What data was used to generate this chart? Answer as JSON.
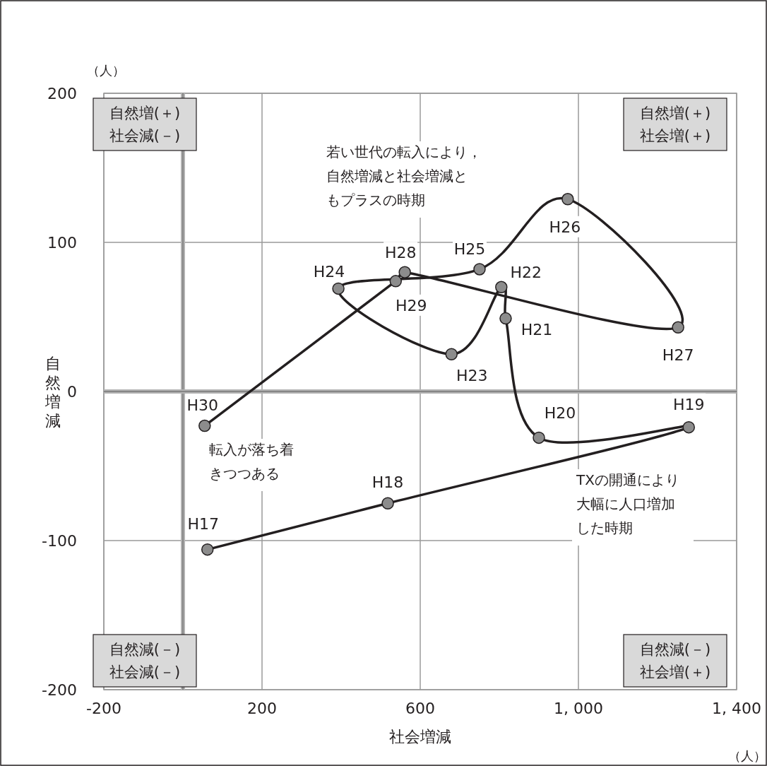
{
  "chart_data": {
    "type": "line",
    "xlabel": "社会増減",
    "ylabel": "自然増減",
    "series": [
      {
        "color": "#231f20",
        "x": [
          62,
          518,
          1279,
          900,
          816,
          805,
          679,
          393,
          750,
          973,
          1252,
          561,
          538,
          55
        ],
        "values": [
          -106,
          -75,
          -24,
          -31,
          49,
          70,
          25,
          69,
          82,
          129,
          43,
          80,
          74,
          -23
        ]
      }
    ],
    "marker": "circle",
    "grid": true,
    "xlim": [
      -200,
      1400
    ],
    "xticks": [
      -200,
      200,
      600,
      {
        "value": 1000,
        "label": "1, 000"
      },
      {
        "value": 1400,
        "label": "1, 400"
      }
    ],
    "ylim": [
      -200,
      200
    ],
    "yticks": [
      -200,
      -100,
      0,
      100,
      200
    ],
    "ref_lines": [
      {
        "axis": "x",
        "value": 0,
        "color": "#b3b3b3"
      },
      {
        "axis": "y",
        "value": 0,
        "color": "#b3b3b3"
      }
    ],
    "annotations": [
      "（人）",
      "（人）",
      "自然増(＋)社会減(－)",
      "自然増(＋)社会増(＋)",
      "自然減(－)社会減(－)",
      "自然減(－)社会増(＋)",
      "若い世代の転入により，自然増減と社会増減ともプラスの時期",
      "転入が落ち着きつつある",
      "TXの開通により大幅に人口増加した時期",
      {
        "text": "H17",
        "x": 62,
        "y": -106
      },
      {
        "text": "H18",
        "x": 518,
        "y": -75
      },
      {
        "text": "H19",
        "x": 1279,
        "y": -24
      },
      {
        "text": "H20",
        "x": 900,
        "y": -31
      },
      {
        "text": "H21",
        "x": 816,
        "y": 49
      },
      {
        "text": "H22",
        "x": 805,
        "y": 70
      },
      {
        "text": "H23",
        "x": 679,
        "y": 25
      },
      {
        "text": "H24",
        "x": 393,
        "y": 69
      },
      {
        "text": "H25",
        "x": 750,
        "y": 82
      },
      {
        "text": "H26",
        "x": 973,
        "y": 129
      },
      {
        "text": "H27",
        "x": 1252,
        "y": 43
      },
      {
        "text": "H28",
        "x": 561,
        "y": 80
      },
      {
        "text": "H29",
        "x": 538,
        "y": 74
      },
      {
        "text": "H30",
        "x": 55,
        "y": -23
      }
    ]
  }
}
